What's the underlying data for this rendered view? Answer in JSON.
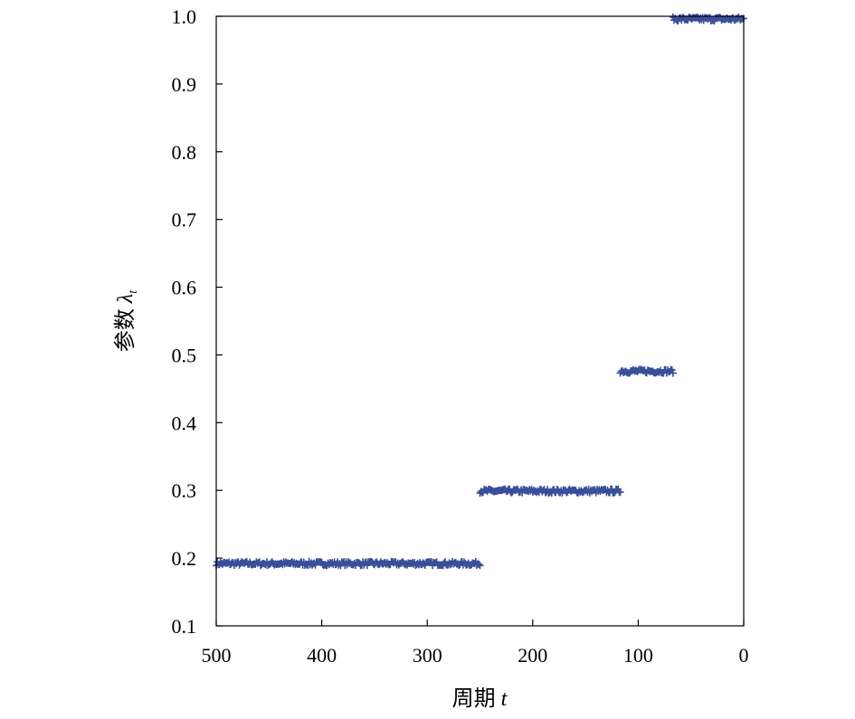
{
  "chart_data": {
    "type": "scatter",
    "xlabel": "周期",
    "xlabel_var": "t",
    "ylabel": "参数",
    "ylabel_var": "λ",
    "ylabel_sub": "t",
    "xlim": [
      500,
      0
    ],
    "ylim": [
      0.1,
      1.0
    ],
    "x_reversed": true,
    "grid": false,
    "marker": "plus",
    "color": "#3a4f9a",
    "xticks": [
      "500",
      "400",
      "300",
      "200",
      "100",
      "0"
    ],
    "yticks": [
      "0.1",
      "0.2",
      "0.3",
      "0.4",
      "0.5",
      "0.6",
      "0.7",
      "0.8",
      "0.9",
      "1.0"
    ],
    "segments": [
      {
        "x_start": 500,
        "x_end": 250,
        "y": 0.192
      },
      {
        "x_start": 250,
        "x_end": 117,
        "y": 0.299
      },
      {
        "x_start": 117,
        "x_end": 67,
        "y": 0.476
      },
      {
        "x_start": 67,
        "x_end": 0,
        "y": 0.996
      }
    ]
  }
}
